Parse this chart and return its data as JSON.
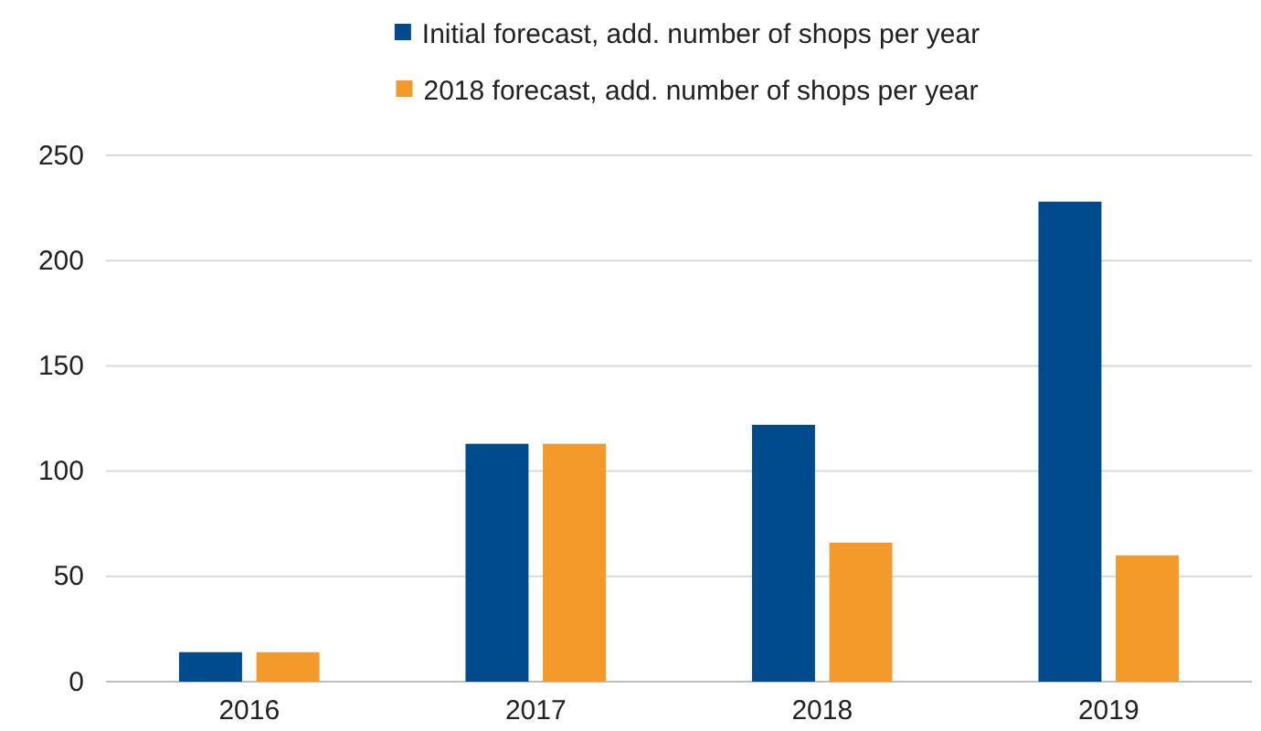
{
  "chart_data": {
    "type": "bar",
    "categories": [
      "2016",
      "2017",
      "2018",
      "2019"
    ],
    "series": [
      {
        "name": "Initial forecast, add. number of shops per year",
        "color": "#004b8d",
        "values": [
          14,
          113,
          122,
          228
        ]
      },
      {
        "name": "2018 forecast, add. number of shops per year",
        "color": "#f39a2b",
        "values": [
          14,
          113,
          66,
          60
        ]
      }
    ],
    "ylim": [
      0,
      250
    ],
    "yticks": [
      0,
      50,
      100,
      150,
      200,
      250
    ],
    "grid": "y",
    "legend": "top"
  }
}
